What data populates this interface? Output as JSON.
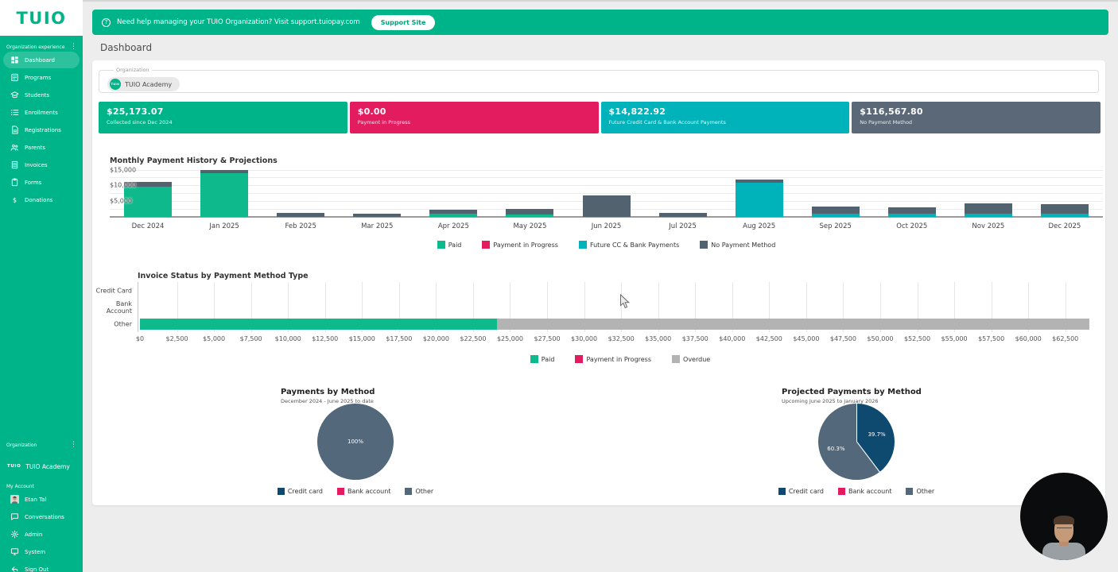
{
  "app": {
    "logo_text": "TUIO"
  },
  "banner": {
    "icon": "help-circle-icon",
    "icon_glyph": "?",
    "text": "Need help managing your TUIO Organization? Visit support.tuiopay.com",
    "button_label": "Support Site"
  },
  "page": {
    "title": "Dashboard"
  },
  "sidebar": {
    "top_section_label": "Organization experience",
    "items": [
      {
        "label": "Dashboard",
        "icon": "dashboard-icon",
        "active": true
      },
      {
        "label": "Programs",
        "icon": "programs-icon",
        "active": false
      },
      {
        "label": "Students",
        "icon": "students-icon",
        "active": false
      },
      {
        "label": "Enrollments",
        "icon": "enrollments-icon",
        "active": false
      },
      {
        "label": "Registrations",
        "icon": "registrations-icon",
        "active": false
      },
      {
        "label": "Parents",
        "icon": "parents-icon",
        "active": false
      },
      {
        "label": "Invoices",
        "icon": "invoices-icon",
        "active": false
      },
      {
        "label": "Forms",
        "icon": "forms-icon",
        "active": false
      },
      {
        "label": "Donations",
        "icon": "donations-icon",
        "active": false
      }
    ],
    "bottom_section_label": "Organization",
    "org_logo_text": "TUIO",
    "organization_name": "TUIO Academy",
    "account_section_label": "My Account",
    "account_items": [
      {
        "label": "Etan Tal",
        "icon": "avatar"
      },
      {
        "label": "Conversations",
        "icon": "chat-icon"
      },
      {
        "label": "Admin",
        "icon": "gear-icon"
      },
      {
        "label": "System",
        "icon": "monitor-icon"
      },
      {
        "label": "Sign Out",
        "icon": "sign-out-icon"
      }
    ]
  },
  "organization_field": {
    "legend": "Organization",
    "chip_logo_text": "TUIO",
    "value": "TUIO Academy"
  },
  "stat_cards": [
    {
      "amount": "$25,173.07",
      "label": "Collected since Dec 2024",
      "color": "#00b489"
    },
    {
      "amount": "$0.00",
      "label": "Payment in Progress",
      "color": "#e31c5f"
    },
    {
      "amount": "$14,822.92",
      "label": "Future Credit Card & Bank Account Payments",
      "color": "#00b2ba"
    },
    {
      "amount": "$116,567.80",
      "label": "No Payment Method",
      "color": "#5a6877"
    }
  ],
  "chart_data": [
    {
      "type": "bar",
      "title": "Monthly Payment History & Projections",
      "stacked": true,
      "categories": [
        "Dec 2024",
        "Jan 2025",
        "Feb 2025",
        "Mar 2025",
        "Apr 2025",
        "May 2025",
        "Jun 2025",
        "Jul 2025",
        "Aug 2025",
        "Sep 2025",
        "Oct 2025",
        "Nov 2025",
        "Dec 2025"
      ],
      "series": [
        {
          "name": "Paid",
          "color": "#0eba8c",
          "values": [
            9600,
            13800,
            0,
            0,
            900,
            800,
            0,
            0,
            0,
            0,
            0,
            0,
            0
          ]
        },
        {
          "name": "Payment in Progress",
          "color": "#e31c5f",
          "values": [
            0,
            0,
            0,
            0,
            0,
            0,
            0,
            0,
            0,
            0,
            0,
            0,
            0
          ]
        },
        {
          "name": "Future CC & Bank Payments",
          "color": "#00b2ba",
          "values": [
            0,
            0,
            0,
            0,
            0,
            0,
            0,
            0,
            10800,
            900,
            900,
            900,
            900
          ]
        },
        {
          "name": "No Payment Method",
          "color": "#53626f",
          "values": [
            1400,
            1200,
            1200,
            1100,
            1400,
            1700,
            6800,
            1200,
            1000,
            2400,
            2200,
            3400,
            3200
          ]
        }
      ],
      "ylim": [
        0,
        16400
      ],
      "yticks": [
        5000,
        10000,
        15000
      ],
      "gridline_step": 2500,
      "legend_position": "bottom",
      "grid": true
    },
    {
      "type": "bar-horizontal",
      "title": "Invoice Status by Payment Method Type",
      "stacked": true,
      "categories": [
        "Credit Card",
        "Bank Account",
        "Other"
      ],
      "series": [
        {
          "name": "Paid",
          "color": "#0eba8c",
          "values": [
            0,
            0,
            24100
          ]
        },
        {
          "name": "Payment in Progress",
          "color": "#e31c5f",
          "values": [
            0,
            0,
            0
          ]
        },
        {
          "name": "Overdue",
          "color": "#b3b3b3",
          "values": [
            0,
            0,
            40000
          ]
        }
      ],
      "xlim": [
        0,
        65200
      ],
      "xtick_step": 2500,
      "xtick_max": 62500,
      "legend_position": "bottom",
      "grid": true
    },
    {
      "type": "pie",
      "title": "Payments by Method",
      "subtitle": "December 2024 - June 2025 to date",
      "slices": [
        {
          "label": "Credit card",
          "value": 0,
          "color": "#0e4a6f"
        },
        {
          "label": "Bank account",
          "value": 0,
          "color": "#e31c5f"
        },
        {
          "label": "Other",
          "value": 100,
          "color": "#53687a"
        }
      ],
      "slice_label_format": "percent",
      "legend_position": "bottom"
    },
    {
      "type": "pie",
      "title": "Projected Payments by Method",
      "subtitle": "Upcoming June 2025 to January 2026",
      "slices": [
        {
          "label": "Credit card",
          "value": 39.7,
          "color": "#0e4a6f"
        },
        {
          "label": "Bank account",
          "value": 0,
          "color": "#e31c5f"
        },
        {
          "label": "Other",
          "value": 60.3,
          "color": "#53687a"
        }
      ],
      "slice_label_format": "percent",
      "legend_position": "bottom"
    }
  ]
}
